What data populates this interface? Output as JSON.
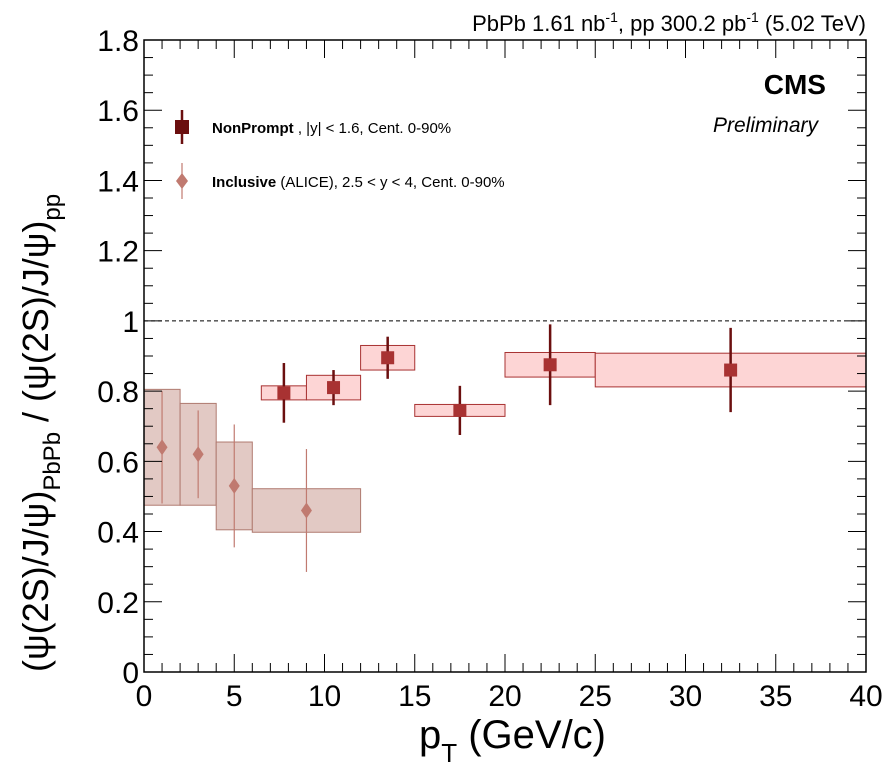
{
  "chart_data": {
    "type": "scatter",
    "header": {
      "pbpb": "PbPb 1.61 nb",
      "pbpb_sup": "-1",
      "pp": ", pp 300.2 pb",
      "pp_sup": "-1",
      "energy": " (5.02 TeV)"
    },
    "experiment": "CMS",
    "status": "Preliminary",
    "xlabel": {
      "main": "p",
      "sub": "T",
      "rest": " (GeV/c)"
    },
    "ylabel": {
      "part1": "(ψ(2S)/J/ψ)",
      "sub1": "PbPb",
      "part2": " / (ψ(2S)/J/ψ)",
      "sub2": "pp"
    },
    "xlim": [
      0,
      40
    ],
    "ylim": [
      0,
      1.8
    ],
    "xticks": [
      "0",
      "5",
      "10",
      "15",
      "20",
      "25",
      "30",
      "35",
      "40"
    ],
    "xtick_values": [
      0,
      5,
      10,
      15,
      20,
      25,
      30,
      35,
      40
    ],
    "yticks": [
      "0",
      "0.2",
      "0.4",
      "0.6",
      "0.8",
      "1",
      "1.2",
      "1.4",
      "1.6",
      "1.8"
    ],
    "ytick_values": [
      0,
      0.2,
      0.4,
      0.6,
      0.8,
      1.0,
      1.2,
      1.4,
      1.6,
      1.8
    ],
    "reference_line": 1.0,
    "grid": false,
    "legend_position": "top-left",
    "series": [
      {
        "name": "NonPrompt",
        "legend_rest": " , |y| < 1.6,  Cent. 0-90%",
        "marker": "square",
        "marker_color": "#a83232",
        "bar_color": "#6b0f0f",
        "box_fill": "#fdd5d5",
        "box_stroke": "#a83232",
        "points": [
          {
            "x": 7.75,
            "xlo": 6.5,
            "xhi": 9.0,
            "y": 0.795,
            "ystat": 0.085,
            "ysys": 0.02
          },
          {
            "x": 10.5,
            "xlo": 9.0,
            "xhi": 12.0,
            "y": 0.81,
            "ystat": 0.05,
            "ysys": 0.035
          },
          {
            "x": 13.5,
            "xlo": 12.0,
            "xhi": 15.0,
            "y": 0.895,
            "ystat": 0.06,
            "ysys": 0.035
          },
          {
            "x": 17.5,
            "xlo": 15.0,
            "xhi": 20.0,
            "y": 0.745,
            "ystat": 0.07,
            "ysys": 0.017
          },
          {
            "x": 22.5,
            "xlo": 20.0,
            "xhi": 25.0,
            "y": 0.875,
            "ystat": 0.115,
            "ysys": 0.035
          },
          {
            "x": 32.5,
            "xlo": 25.0,
            "xhi": 40.0,
            "y": 0.86,
            "ystat": 0.12,
            "ysys": 0.048
          }
        ]
      },
      {
        "name": "Inclusive",
        "legend_rest": "  (ALICE), 2.5 < y < 4, Cent. 0-90%",
        "marker": "diamond",
        "marker_color": "#c07a70",
        "bar_color": "#c07a70",
        "box_fill": "#e2c9c4",
        "box_stroke": "#b07a70",
        "points": [
          {
            "x": 1.0,
            "xlo": 0.0,
            "xhi": 2.0,
            "y": 0.64,
            "ystat": 0.16,
            "ysys": 0.165
          },
          {
            "x": 3.0,
            "xlo": 2.0,
            "xhi": 4.0,
            "y": 0.62,
            "ystat": 0.125,
            "ysys": 0.145
          },
          {
            "x": 5.0,
            "xlo": 4.0,
            "xhi": 6.0,
            "y": 0.53,
            "ystat": 0.175,
            "ysys": 0.125
          },
          {
            "x": 9.0,
            "xlo": 6.0,
            "xhi": 12.0,
            "y": 0.46,
            "ystat": 0.175,
            "ysys": 0.062
          }
        ]
      }
    ]
  }
}
